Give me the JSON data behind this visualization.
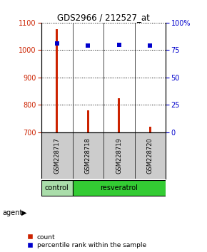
{
  "title": "GDS2966 / 212527_at",
  "samples": [
    "GSM228717",
    "GSM228718",
    "GSM228719",
    "GSM228720"
  ],
  "counts": [
    1075,
    780,
    825,
    720
  ],
  "percentiles": [
    81,
    79,
    80,
    79
  ],
  "ylim_left": [
    700,
    1100
  ],
  "ylim_right": [
    0,
    100
  ],
  "yticks_left": [
    700,
    800,
    900,
    1000,
    1100
  ],
  "yticks_right": [
    0,
    25,
    50,
    75,
    100
  ],
  "bar_color": "#cc2200",
  "dot_color": "#0000cc",
  "agent_label": "agent",
  "groups": [
    "control",
    "resveratrol",
    "resveratrol",
    "resveratrol"
  ],
  "group_colors": {
    "control": "#aaddaa",
    "resveratrol": "#33cc33"
  },
  "background_color": "#ffffff",
  "plot_bg": "#ffffff",
  "legend_count_label": "count",
  "legend_pct_label": "percentile rank within the sample",
  "bar_width": 0.08
}
